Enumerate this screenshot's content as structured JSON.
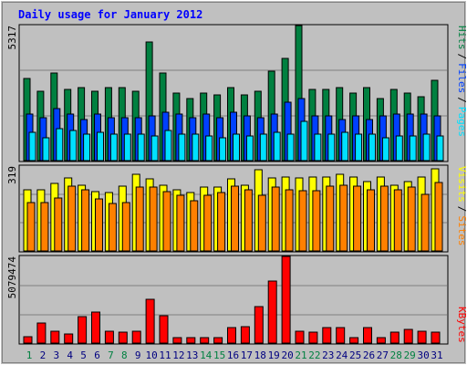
{
  "chart_data": {
    "type": "bar",
    "title": "Daily usage for January 2012",
    "colors": {
      "background": "#c0c0c0",
      "title": "#0000ff",
      "hits": "#008040",
      "files": "#0040ff",
      "pages": "#00e0ff",
      "visits": "#ffff00",
      "sites": "#ff8000",
      "kbytes": "#ff0000",
      "weekend_label": "#008040",
      "weekday_label": "#000080"
    },
    "days": [
      "1",
      "2",
      "3",
      "4",
      "5",
      "6",
      "7",
      "8",
      "9",
      "10",
      "11",
      "12",
      "13",
      "14",
      "15",
      "16",
      "17",
      "18",
      "19",
      "20",
      "21",
      "22",
      "23",
      "24",
      "25",
      "26",
      "27",
      "28",
      "29",
      "30",
      "31"
    ],
    "weekend_days": [
      "1",
      "7",
      "8",
      "14",
      "15",
      "21",
      "22",
      "28",
      "29"
    ],
    "panel1": {
      "max_label": "5317",
      "ymax": 5317,
      "legend": [
        "Pages",
        "/",
        "Files",
        "/",
        "Hits"
      ],
      "series": [
        {
          "name": "Hits",
          "values": [
            3227,
            2718,
            3445,
            2790,
            2863,
            2718,
            2863,
            2863,
            2718,
            4680,
            3445,
            2645,
            2428,
            2645,
            2572,
            2863,
            2573,
            2718,
            3518,
            4034,
            5317,
            2790,
            2790,
            2863,
            2645,
            2863,
            2428,
            2790,
            2645,
            2500,
            3155
          ]
        },
        {
          "name": "Files",
          "values": [
            1847,
            1701,
            2065,
            1847,
            1628,
            1847,
            1701,
            1701,
            1701,
            1774,
            1919,
            1847,
            1701,
            1847,
            1701,
            1919,
            1774,
            1701,
            1847,
            2283,
            2429,
            1774,
            1774,
            1628,
            1774,
            1628,
            1774,
            1847,
            1847,
            1847,
            1774
          ]
        },
        {
          "name": "Pages",
          "values": [
            1120,
            901,
            1265,
            1192,
            1047,
            1120,
            1047,
            1047,
            1047,
            974,
            1192,
            1047,
            1047,
            974,
            901,
            1047,
            974,
            1047,
            1120,
            1047,
            1556,
            1047,
            1047,
            1120,
            1047,
            1047,
            901,
            974,
            974,
            1047,
            974
          ]
        }
      ]
    },
    "panel2": {
      "max_label": "319",
      "ymax": 319,
      "legend": [
        "Sites",
        "/",
        "Visits"
      ],
      "series": [
        {
          "name": "Visits",
          "values": [
            231,
            231,
            253,
            274,
            248,
            222,
            218,
            244,
            287,
            270,
            248,
            231,
            218,
            239,
            239,
            270,
            248,
            304,
            274,
            279,
            274,
            279,
            279,
            287,
            279,
            261,
            279,
            248,
            261,
            279,
            309
          ]
        },
        {
          "name": "Sites",
          "values": [
            183,
            183,
            200,
            244,
            231,
            196,
            179,
            183,
            239,
            239,
            222,
            209,
            187,
            209,
            218,
            244,
            231,
            209,
            239,
            231,
            226,
            226,
            244,
            248,
            244,
            231,
            244,
            231,
            239,
            213,
            257
          ]
        }
      ]
    },
    "panel3": {
      "max_label": "5079474",
      "ymax": 5079474,
      "legend": [
        "KBytes"
      ],
      "series": [
        {
          "name": "KBytes",
          "values": [
            372467,
            1194261,
            677213,
            516934,
            1556402,
            1813377,
            671564,
            654620,
            688507,
            2558828,
            1587466,
            338580,
            310340,
            338580,
            310340,
            925871,
            954111,
            2129554,
            3626318,
            5079474,
            677213,
            649213,
            931519,
            931519,
            310340,
            931519,
            310340,
            649213,
            818634,
            677213,
            649213
          ]
        }
      ]
    }
  }
}
